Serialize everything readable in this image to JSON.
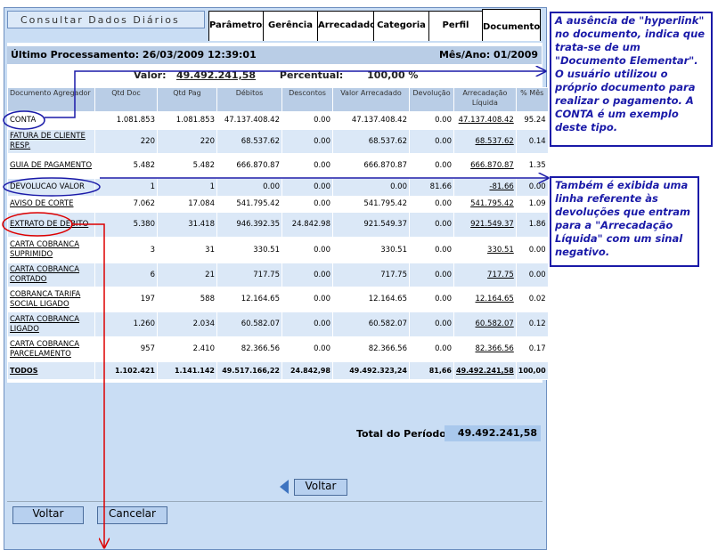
{
  "panel": {
    "title": "Consultar Dados Diários",
    "tabs": [
      "Parâmetros",
      "Gerência",
      "Arrecadador",
      "Categoria",
      "Perfil",
      "Documento"
    ],
    "last_processing": "Último Processamento: 26/03/2009 12:39:01",
    "month_year": "Mês/Ano: 01/2009",
    "summary": {
      "value_label": "Valor:",
      "value": "49.492.241,58",
      "percent_label": "Percentual:",
      "percent": "100,00 %"
    }
  },
  "table": {
    "headers": [
      "Documento Agregador",
      "Qtd Doc",
      "Qtd Pag",
      "Débitos",
      "Descontos",
      "Valor Arrecadado",
      "Devolução",
      "Arrecadação Líquida",
      "% Mês"
    ],
    "rows": [
      [
        "CONTA",
        "1.081.853",
        "1.081.853",
        "47.137.408.42",
        "0.00",
        "47.137.408.42",
        "0.00",
        "47.137.408.42",
        "95.24"
      ],
      [
        "FATURA DE CLIENTE RESP.",
        "220",
        "220",
        "68.537.62",
        "0.00",
        "68.537.62",
        "0.00",
        "68.537.62",
        "0.14"
      ],
      [
        "GUIA DE PAGAMENTO",
        "5.482",
        "5.482",
        "666.870.87",
        "0.00",
        "666.870.87",
        "0.00",
        "666.870.87",
        "1.35"
      ],
      [
        "DEVOLUCAO VALOR",
        "1",
        "1",
        "0.00",
        "0.00",
        "0.00",
        "81.66",
        "-81.66",
        "0.00"
      ],
      [
        "AVISO DE CORTE",
        "7.062",
        "17.084",
        "541.795.42",
        "0.00",
        "541.795.42",
        "0.00",
        "541.795.42",
        "1.09"
      ],
      [
        "EXTRATO DE DEBITO",
        "5.380",
        "31.418",
        "946.392.35",
        "24.842.98",
        "921.549.37",
        "0.00",
        "921.549.37",
        "1.86"
      ],
      [
        "CARTA COBRANCA SUPRIMIDO",
        "3",
        "31",
        "330.51",
        "0.00",
        "330.51",
        "0.00",
        "330.51",
        "0.00"
      ],
      [
        "CARTA COBRANCA CORTADO",
        "6",
        "21",
        "717.75",
        "0.00",
        "717.75",
        "0.00",
        "717.75",
        "0.00"
      ],
      [
        "COBRANCA TARIFA SOCIAL LIGADO",
        "197",
        "588",
        "12.164.65",
        "0.00",
        "12.164.65",
        "0.00",
        "12.164.65",
        "0.02"
      ],
      [
        "CARTA COBRANCA LIGADO",
        "1.260",
        "2.034",
        "60.582.07",
        "0.00",
        "60.582.07",
        "0.00",
        "60.582.07",
        "0.12"
      ],
      [
        "CARTA COBRANCA PARCELAMENTO",
        "957",
        "2.410",
        "82.366.56",
        "0.00",
        "82.366.56",
        "0.00",
        "82.366.56",
        "0.17"
      ]
    ],
    "total": [
      "TODOS",
      "1.102.421",
      "1.141.142",
      "49.517.166,22",
      "24.842,98",
      "49.492.323,24",
      "81,66",
      "49.492.241,58",
      "100,00"
    ]
  },
  "period_total": {
    "label": "Total do Período:",
    "value": "49.492.241,58"
  },
  "buttons": {
    "back_arrow": "Voltar",
    "back": "Voltar",
    "cancel": "Cancelar"
  },
  "annotations": [
    "A ausência de \"hyperlink\" no documento, indica que trata-se de um \"Documento Elementar\". O usuário utilizou o próprio documento para realizar o pagamento. A CONTA é um exemplo deste tipo.",
    "Também é exibida uma linha referente às devoluções que entram para a \"Arrecadação Líquida\" com um sinal negativo."
  ]
}
